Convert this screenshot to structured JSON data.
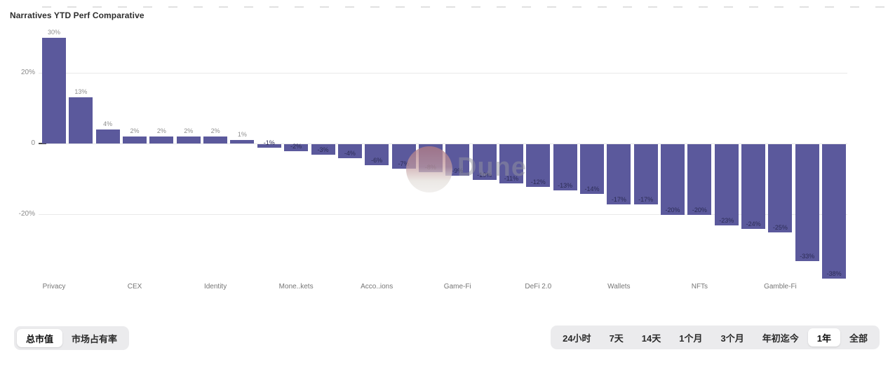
{
  "chart_data": {
    "type": "bar",
    "title": "Narratives YTD Perf Comparative",
    "values": [
      30,
      13,
      4,
      2,
      2,
      2,
      2,
      1,
      -1,
      -2,
      -3,
      -4,
      -6,
      -7,
      -8,
      -9,
      -10,
      -11,
      -12,
      -13,
      -14,
      -17,
      -17,
      -20,
      -20,
      -23,
      -24,
      -25,
      -33,
      -38
    ],
    "labels": [
      "30%",
      "13%",
      "4%",
      "2%",
      "2%",
      "2%",
      "2%",
      "1%",
      "-1%",
      "-2%",
      "-3%",
      "-4%",
      "-6%",
      "-7%",
      "-8%",
      "-9%",
      "-10%",
      "-11%",
      "-12%",
      "-13%",
      "-14%",
      "-17%",
      "-17%",
      "-20%",
      "-20%",
      "-23%",
      "-24%",
      "-25%",
      "-33%",
      "-38%"
    ],
    "x_tick_labels": [
      "Privacy",
      "CEX",
      "Identity",
      "Mone..kets",
      "Acco..ions",
      "Game-Fi",
      "DeFi 2.0",
      "Wallets",
      "NFTs",
      "Gamble-Fi"
    ],
    "x_tick_every": 3,
    "y_ticks": [
      {
        "label": "20%",
        "value": 20
      },
      {
        "label": "0",
        "value": 0
      },
      {
        "label": "-20%",
        "value": -20
      }
    ],
    "ylim": [
      -40,
      40
    ],
    "grid": true,
    "legend": "none",
    "bar_color": "#5b599c"
  },
  "colors": {
    "bar": "#5b599c",
    "positive_label": "#8e8e8e",
    "negative_label": "#2c2c55",
    "grid": "#e9e9e9",
    "axis_text": "#8a8a8a",
    "control_bg": "#ebebed",
    "selected_bg": "#ffffff"
  },
  "watermark": {
    "text": "Dune"
  },
  "controls": {
    "metric": {
      "items": [
        {
          "label": "总市值",
          "selected": true
        },
        {
          "label": "市场占有率",
          "selected": false
        }
      ]
    },
    "timerange": {
      "items": [
        {
          "label": "24小时",
          "selected": false
        },
        {
          "label": "7天",
          "selected": false
        },
        {
          "label": "14天",
          "selected": false
        },
        {
          "label": "1个月",
          "selected": false
        },
        {
          "label": "3个月",
          "selected": false
        },
        {
          "label": "年初迄今",
          "selected": false
        },
        {
          "label": "1年",
          "selected": true
        },
        {
          "label": "全部",
          "selected": false
        }
      ]
    }
  }
}
